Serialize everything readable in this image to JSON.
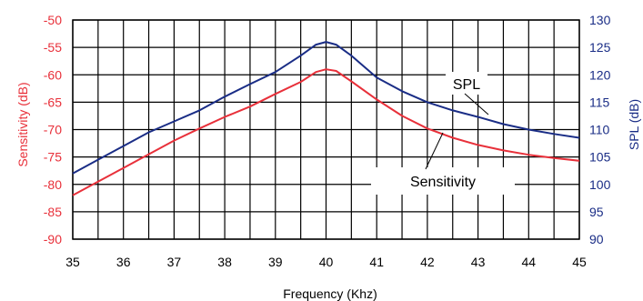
{
  "chart_data": {
    "type": "line",
    "title": "",
    "xlabel": "Frequency (Khz)",
    "ylabel_left": "Sensitivity (dB)",
    "ylabel_right": "SPL (dB)",
    "x_ticks": [
      "35",
      "36",
      "37",
      "38",
      "39",
      "40",
      "41",
      "42",
      "43",
      "44",
      "45"
    ],
    "y_left_ticks": [
      "-50",
      "-55",
      "-60",
      "-65",
      "-70",
      "-75",
      "-80",
      "-85",
      "-90"
    ],
    "y_right_ticks": [
      "130",
      "125",
      "120",
      "115",
      "110",
      "105",
      "100",
      "95",
      "90"
    ],
    "xlim": [
      35,
      45
    ],
    "ylim_left": [
      -90,
      -50
    ],
    "ylim_right": [
      90,
      130
    ],
    "grid": true,
    "colors": {
      "sensitivity": "#e8303a",
      "spl": "#1a2d86",
      "grid": "#000000"
    },
    "series": [
      {
        "name": "Sensitivity",
        "axis": "left",
        "color": "#e8303a",
        "x": [
          35,
          35.5,
          36,
          36.5,
          37,
          37.5,
          38,
          38.5,
          39,
          39.5,
          39.8,
          40,
          40.2,
          40.5,
          41,
          41.5,
          42,
          42.5,
          43,
          43.5,
          44,
          44.5,
          45
        ],
        "y": [
          -82,
          -79.5,
          -77,
          -74.5,
          -72,
          -69.8,
          -67.7,
          -65.8,
          -63.5,
          -61.3,
          -59.5,
          -59,
          -59.3,
          -61.2,
          -64.5,
          -67.5,
          -69.8,
          -71.5,
          -72.8,
          -73.8,
          -74.6,
          -75.2,
          -75.7
        ]
      },
      {
        "name": "SPL",
        "axis": "right",
        "color": "#1a2d86",
        "x": [
          35,
          35.5,
          36,
          36.5,
          37,
          37.5,
          38,
          38.5,
          39,
          39.5,
          39.8,
          40,
          40.2,
          40.5,
          41,
          41.5,
          42,
          42.5,
          43,
          43.5,
          44,
          44.5,
          45
        ],
        "y": [
          102,
          104.5,
          107,
          109.5,
          111.5,
          113.5,
          116,
          118.3,
          120.5,
          123.5,
          125.5,
          126,
          125.5,
          123.5,
          119.5,
          117,
          115,
          113.5,
          112.3,
          111,
          110,
          109.2,
          108.5
        ]
      }
    ],
    "annotations": [
      {
        "text": "SPL",
        "series": "SPL"
      },
      {
        "text": "Sensitivity",
        "series": "Sensitivity"
      }
    ]
  }
}
